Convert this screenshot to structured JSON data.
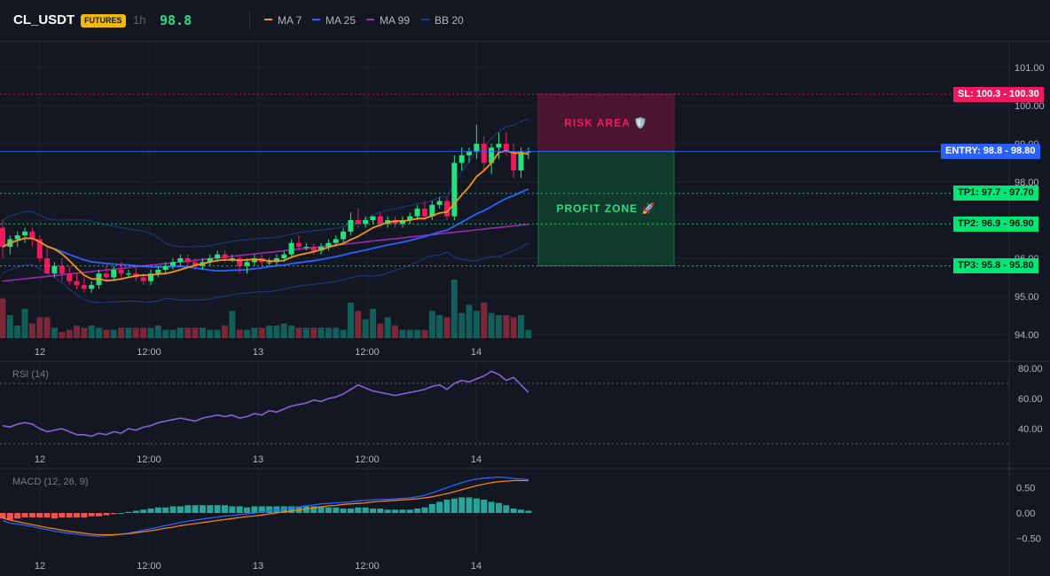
{
  "header": {
    "symbol": "CL_USDT",
    "badge": "FUTURES",
    "timeframe": "1h",
    "price": "98.8"
  },
  "indicators": [
    {
      "label": "MA 7",
      "color": "#f7931a"
    },
    {
      "label": "MA 25",
      "color": "#2962ff"
    },
    {
      "label": "MA 99",
      "color": "#9c27b0"
    },
    {
      "label": "BB 20",
      "color": "#1e3a8a"
    }
  ],
  "colors": {
    "up": "#26e07f",
    "down": "#f0195f",
    "vol_up": "#125e58",
    "vol_down": "#7a2739",
    "sl": "#f0195f",
    "entry": "#2962ff",
    "tp": "#00e676",
    "bb": "#1f3b80",
    "rsi": "#8b5fd6",
    "macd": "#2962ff",
    "signal": "#f57f17"
  },
  "price_axis": {
    "ticks": [
      "101.00",
      "100.00",
      "99.00",
      "98.00",
      "96.00",
      "95.00",
      "94.00"
    ]
  },
  "levels": {
    "sl": {
      "label": "SL: 100.3 - 100.30",
      "value": 100.3
    },
    "entry": {
      "label": "ENTRY: 98.8 - 98.80",
      "value": 98.8
    },
    "tp1": {
      "label": "TP1: 97.7 - 97.70",
      "value": 97.7
    },
    "tp2": {
      "label": "TP2: 96.9 - 96.90",
      "value": 96.9
    },
    "tp3": {
      "label": "TP3: 95.8 - 95.80",
      "value": 95.8
    }
  },
  "zones": {
    "risk": "RISK AREA 🛡️",
    "profit": "PROFIT ZONE 🚀"
  },
  "time_axis": [
    "12",
    "12:00",
    "13",
    "12:00",
    "14"
  ],
  "rsi": {
    "title": "RSI (14)",
    "ticks": [
      "80.00",
      "60.00",
      "40.00"
    ],
    "upper": 70,
    "lower": 30
  },
  "macd": {
    "title": "MACD (12, 26, 9)",
    "ticks": [
      "0.50",
      "0.00",
      "−0.50"
    ]
  },
  "chart_data": {
    "type": "candlestick",
    "interval": "1h",
    "ylim": [
      94.0,
      101.3
    ],
    "candles_ohlc": [
      [
        96.8,
        97.0,
        96.0,
        96.3
      ],
      [
        96.3,
        96.6,
        96.1,
        96.5
      ],
      [
        96.5,
        96.7,
        96.3,
        96.6
      ],
      [
        96.6,
        96.8,
        96.4,
        96.7
      ],
      [
        96.7,
        96.8,
        96.3,
        96.5
      ],
      [
        96.5,
        96.6,
        95.9,
        96.0
      ],
      [
        96.0,
        96.3,
        95.6,
        95.6
      ],
      [
        95.6,
        95.9,
        95.5,
        95.8
      ],
      [
        95.8,
        96.0,
        95.4,
        95.6
      ],
      [
        95.6,
        95.8,
        95.3,
        95.4
      ],
      [
        95.4,
        95.6,
        95.2,
        95.3
      ],
      [
        95.3,
        95.5,
        95.1,
        95.2
      ],
      [
        95.2,
        95.4,
        95.1,
        95.3
      ],
      [
        95.3,
        95.7,
        95.2,
        95.6
      ],
      [
        95.6,
        95.8,
        95.4,
        95.5
      ],
      [
        95.5,
        95.8,
        95.4,
        95.7
      ],
      [
        95.7,
        95.9,
        95.5,
        95.6
      ],
      [
        95.6,
        95.7,
        95.5,
        95.6
      ],
      [
        95.6,
        95.8,
        95.4,
        95.5
      ],
      [
        95.5,
        95.6,
        95.3,
        95.4
      ],
      [
        95.4,
        95.7,
        95.3,
        95.6
      ],
      [
        95.6,
        95.8,
        95.5,
        95.7
      ],
      [
        95.7,
        95.9,
        95.6,
        95.8
      ],
      [
        95.8,
        96.0,
        95.7,
        95.9
      ],
      [
        95.9,
        96.1,
        95.8,
        96.0
      ],
      [
        96.0,
        96.1,
        95.8,
        95.9
      ],
      [
        95.9,
        96.0,
        95.7,
        95.8
      ],
      [
        95.8,
        96.0,
        95.7,
        95.9
      ],
      [
        95.9,
        96.1,
        95.8,
        96.0
      ],
      [
        96.0,
        96.2,
        95.9,
        96.1
      ],
      [
        96.1,
        96.2,
        95.9,
        96.0
      ],
      [
        96.0,
        96.1,
        95.9,
        96.0
      ],
      [
        96.0,
        96.1,
        95.6,
        95.8
      ],
      [
        95.8,
        96.0,
        95.6,
        95.9
      ],
      [
        95.9,
        96.1,
        95.8,
        96.0
      ],
      [
        96.0,
        96.1,
        95.8,
        95.9
      ],
      [
        95.9,
        96.0,
        95.8,
        95.9
      ],
      [
        95.9,
        96.1,
        95.8,
        96.0
      ],
      [
        96.0,
        96.2,
        95.9,
        96.1
      ],
      [
        96.1,
        96.5,
        96.0,
        96.4
      ],
      [
        96.4,
        96.6,
        96.2,
        96.3
      ],
      [
        96.3,
        96.4,
        96.2,
        96.3
      ],
      [
        96.3,
        96.4,
        96.1,
        96.2
      ],
      [
        96.2,
        96.4,
        96.1,
        96.3
      ],
      [
        96.3,
        96.5,
        96.2,
        96.4
      ],
      [
        96.4,
        96.6,
        96.3,
        96.5
      ],
      [
        96.5,
        96.8,
        96.4,
        96.7
      ],
      [
        96.7,
        97.2,
        96.6,
        97.0
      ],
      [
        97.0,
        97.3,
        96.8,
        96.9
      ],
      [
        96.9,
        97.1,
        96.8,
        97.0
      ],
      [
        97.0,
        97.1,
        96.9,
        97.1
      ],
      [
        97.1,
        97.2,
        96.8,
        96.9
      ],
      [
        96.9,
        97.1,
        96.8,
        97.0
      ],
      [
        97.0,
        97.1,
        96.8,
        96.9
      ],
      [
        96.9,
        97.1,
        96.8,
        97.0
      ],
      [
        97.0,
        97.2,
        96.9,
        97.1
      ],
      [
        97.1,
        97.4,
        97.0,
        97.3
      ],
      [
        97.3,
        97.5,
        97.0,
        97.1
      ],
      [
        97.1,
        97.5,
        97.0,
        97.4
      ],
      [
        97.4,
        97.6,
        97.3,
        97.5
      ],
      [
        97.5,
        97.6,
        97.0,
        97.1
      ],
      [
        97.1,
        98.7,
        97.0,
        98.5
      ],
      [
        98.5,
        98.9,
        98.3,
        98.7
      ],
      [
        98.7,
        98.9,
        98.5,
        98.8
      ],
      [
        98.8,
        99.5,
        98.6,
        99.0
      ],
      [
        99.0,
        99.2,
        98.3,
        98.5
      ],
      [
        98.5,
        99.0,
        98.2,
        98.9
      ],
      [
        98.9,
        99.3,
        98.6,
        99.0
      ],
      [
        99.0,
        99.3,
        98.7,
        98.8
      ],
      [
        98.8,
        99.0,
        98.1,
        98.3
      ],
      [
        98.3,
        98.9,
        98.1,
        98.8
      ],
      [
        98.8,
        98.9,
        98.6,
        98.8
      ]
    ],
    "volume": [
      0.95,
      0.55,
      0.3,
      0.7,
      0.35,
      0.5,
      0.5,
      0.25,
      0.15,
      0.2,
      0.3,
      0.25,
      0.3,
      0.25,
      0.2,
      0.2,
      0.25,
      0.25,
      0.25,
      0.25,
      0.25,
      0.3,
      0.2,
      0.2,
      0.25,
      0.25,
      0.25,
      0.25,
      0.2,
      0.2,
      0.3,
      0.65,
      0.2,
      0.2,
      0.25,
      0.25,
      0.3,
      0.3,
      0.35,
      0.3,
      0.25,
      0.25,
      0.25,
      0.25,
      0.25,
      0.25,
      0.2,
      0.85,
      0.65,
      0.45,
      0.7,
      0.35,
      0.5,
      0.3,
      0.2,
      0.2,
      0.2,
      0.2,
      0.65,
      0.55,
      0.5,
      1.4,
      0.6,
      0.8,
      0.65,
      0.85,
      0.6,
      0.55,
      0.55,
      0.5,
      0.55,
      0.2
    ],
    "rsi": [
      42,
      41,
      43,
      44,
      43,
      40,
      38,
      39,
      40,
      38,
      36,
      36,
      35,
      37,
      36,
      38,
      37,
      40,
      39,
      41,
      42,
      44,
      45,
      46,
      47,
      46,
      45,
      47,
      48,
      49,
      48,
      49,
      47,
      48,
      50,
      49,
      52,
      51,
      53,
      55,
      56,
      57,
      59,
      58,
      60,
      61,
      63,
      66,
      69,
      67,
      65,
      64,
      63,
      62,
      63,
      64,
      65,
      66,
      68,
      69,
      66,
      70,
      72,
      71,
      73,
      75,
      78,
      76,
      72,
      74,
      69,
      64
    ],
    "macd": [
      -0.15,
      -0.2,
      -0.22,
      -0.24,
      -0.27,
      -0.3,
      -0.33,
      -0.36,
      -0.38,
      -0.4,
      -0.42,
      -0.44,
      -0.45,
      -0.46,
      -0.45,
      -0.44,
      -0.42,
      -0.4,
      -0.37,
      -0.34,
      -0.31,
      -0.28,
      -0.25,
      -0.22,
      -0.19,
      -0.16,
      -0.14,
      -0.12,
      -0.1,
      -0.08,
      -0.06,
      -0.05,
      -0.03,
      -0.02,
      0.0,
      0.02,
      0.04,
      0.06,
      0.08,
      0.1,
      0.12,
      0.14,
      0.16,
      0.18,
      0.19,
      0.2,
      0.21,
      0.22,
      0.24,
      0.25,
      0.26,
      0.27,
      0.27,
      0.28,
      0.29,
      0.3,
      0.32,
      0.35,
      0.4,
      0.45,
      0.5,
      0.55,
      0.6,
      0.64,
      0.67,
      0.69,
      0.7,
      0.71,
      0.7,
      0.68,
      0.67,
      0.66
    ],
    "signal": [
      -0.1,
      -0.14,
      -0.17,
      -0.2,
      -0.23,
      -0.26,
      -0.29,
      -0.31,
      -0.34,
      -0.36,
      -0.38,
      -0.4,
      -0.42,
      -0.43,
      -0.43,
      -0.43,
      -0.42,
      -0.41,
      -0.39,
      -0.37,
      -0.35,
      -0.33,
      -0.3,
      -0.28,
      -0.25,
      -0.23,
      -0.21,
      -0.19,
      -0.17,
      -0.15,
      -0.13,
      -0.11,
      -0.09,
      -0.07,
      -0.06,
      -0.04,
      -0.02,
      0.0,
      0.02,
      0.04,
      0.06,
      0.08,
      0.1,
      0.12,
      0.14,
      0.15,
      0.17,
      0.18,
      0.19,
      0.2,
      0.22,
      0.23,
      0.24,
      0.25,
      0.26,
      0.27,
      0.28,
      0.3,
      0.32,
      0.35,
      0.38,
      0.42,
      0.46,
      0.5,
      0.54,
      0.57,
      0.6,
      0.62,
      0.63,
      0.64,
      0.64,
      0.64
    ]
  }
}
